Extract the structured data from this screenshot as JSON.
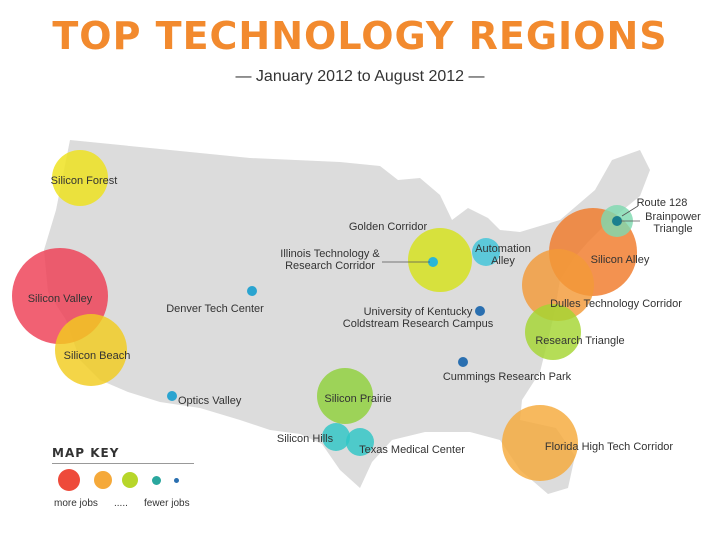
{
  "title": "TOP TECHNOLOGY REGIONS",
  "subtitle": "— January 2012 to August 2012 —",
  "regions": [
    {
      "name": "Silicon Forest",
      "jobs_rank": 3,
      "color": "#eee21a"
    },
    {
      "name": "Silicon Valley",
      "jobs_rank": 1,
      "color": "#ee3e54"
    },
    {
      "name": "Silicon Beach",
      "jobs_rank": 2,
      "color": "#f2cc1f"
    },
    {
      "name": "Denver Tech Center",
      "jobs_rank": 5,
      "color": "#2aa4d0"
    },
    {
      "name": "Optics Valley",
      "jobs_rank": 5,
      "color": "#2aa4d0"
    },
    {
      "name": "Golden Corridor",
      "jobs_rank": 3,
      "color": "#d6e21a"
    },
    {
      "name": "Illinois Technology &\nResearch Corridor",
      "jobs_rank": 5,
      "color": "#2ab6d6"
    },
    {
      "name": "Automation\nAlley",
      "jobs_rank": 4,
      "color": "#3fc5d9"
    },
    {
      "name": "University of Kentucky\nColdstream Research Campus",
      "jobs_rank": 5,
      "color": "#2a6fb0"
    },
    {
      "name": "Cummings Research Park",
      "jobs_rank": 5,
      "color": "#2a6fb0"
    },
    {
      "name": "Silicon Prairie",
      "jobs_rank": 3,
      "color": "#8fd13a"
    },
    {
      "name": "Silicon Hills",
      "jobs_rank": 4,
      "color": "#2ec6c6"
    },
    {
      "name": "Texas Medical Center",
      "jobs_rank": 4,
      "color": "#2ec6c6"
    },
    {
      "name": "Route 128",
      "jobs_rank": 4,
      "color": "#7fd9b0"
    },
    {
      "name": "Brainpower\nTriangle",
      "jobs_rank": 5,
      "color": "#1a7f8e"
    },
    {
      "name": "Silicon Alley",
      "jobs_rank": 1,
      "color": "#f07a2a"
    },
    {
      "name": "Dulles Technology Corridor",
      "jobs_rank": 2,
      "color": "#f39a38"
    },
    {
      "name": "Research Triangle",
      "jobs_rank": 3,
      "color": "#a5d632"
    },
    {
      "name": "Florida High Tech Corridor",
      "jobs_rank": 2,
      "color": "#f5a93a"
    }
  ],
  "map_key": {
    "title": "MAP KEY",
    "more_label": "more jobs",
    "dots_label": ".....",
    "fewer_label": "fewer jobs",
    "colors": [
      "#ee4a3a",
      "#f5a93a",
      "#b7d62a",
      "#2aa79e",
      "#2a6fb0"
    ]
  }
}
